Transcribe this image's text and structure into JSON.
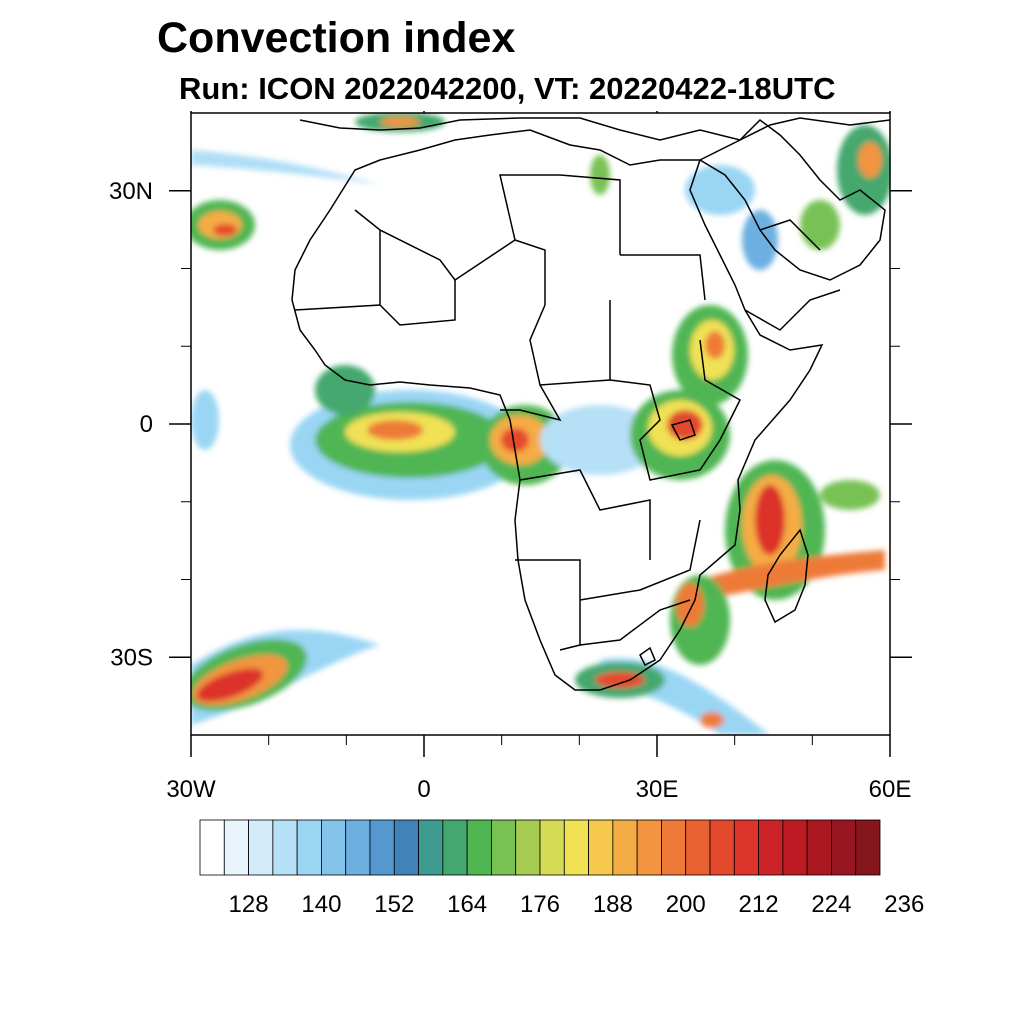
{
  "title": "Convection index",
  "subtitle": "Run: ICON 2022042200,  VT: 20220422-18UTC",
  "map": {
    "region": "Africa",
    "lon_range": [
      -30,
      60
    ],
    "lat_range": [
      -40,
      40
    ],
    "y_tick_labels": [
      {
        "label": "30N",
        "lat": 30
      },
      {
        "label": "0",
        "lat": 0
      },
      {
        "label": "30S",
        "lat": -30
      }
    ],
    "x_tick_labels": [
      {
        "label": "30W",
        "lon": -30
      },
      {
        "label": "0",
        "lon": 0
      },
      {
        "label": "30E",
        "lon": 30
      },
      {
        "label": "60E",
        "lon": 60
      }
    ],
    "minor_ticks_lon": [
      -20,
      -10,
      10,
      20,
      40,
      50
    ],
    "minor_ticks_lat": [
      20,
      10,
      -10,
      -20
    ]
  },
  "colorbar": {
    "labels": [
      "128",
      "140",
      "152",
      "164",
      "176",
      "188",
      "200",
      "212",
      "224",
      "236"
    ],
    "colors": [
      "#ffffff",
      "#e8f5fc",
      "#d2ecf9",
      "#b6e0f6",
      "#9ad6f4",
      "#84c3ea",
      "#6cb0e2",
      "#5598d0",
      "#3f83b8",
      "#3f9a90",
      "#44a86e",
      "#4fb652",
      "#78c254",
      "#a6cd52",
      "#d4dc55",
      "#f0e155",
      "#f6c84b",
      "#f5ac45",
      "#f39440",
      "#ee7a38",
      "#e96232",
      "#e4492e",
      "#dc332a",
      "#cd2228",
      "#bd1a24",
      "#ab1721",
      "#981620",
      "#85161d"
    ]
  }
}
